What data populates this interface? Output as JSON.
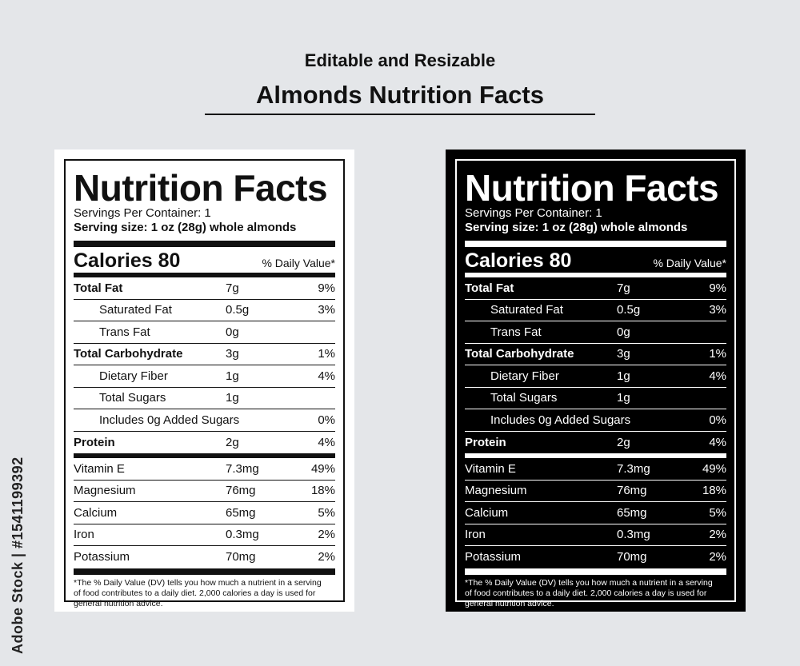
{
  "header": {
    "subtitle": "Editable and Resizable",
    "title": "Almonds Nutrition Facts"
  },
  "side_id": "Adobe Stock | #1541199392",
  "label": {
    "title": "Nutrition Facts",
    "servings_per_container": "Servings Per Container: 1",
    "serving_size": "Serving size: 1 oz (28g) whole almonds",
    "calories": "Calories 80",
    "daily_value_header": "% Daily Value*",
    "rows": [
      {
        "name": "Total Fat",
        "amount": "7g",
        "dv": "9%"
      },
      {
        "name": "Saturated Fat",
        "amount": "0.5g",
        "dv": "3%"
      },
      {
        "name": "Trans Fat",
        "amount": "0g",
        "dv": ""
      },
      {
        "name": "Total Carbohydrate",
        "amount": "3g",
        "dv": "1%"
      },
      {
        "name": "Dietary Fiber",
        "amount": "1g",
        "dv": "4%"
      },
      {
        "name": "Total Sugars",
        "amount": "1g",
        "dv": ""
      },
      {
        "name": "Includes 0g Added Sugars",
        "amount": "",
        "dv": "0%"
      },
      {
        "name": "Protein",
        "amount": "2g",
        "dv": "4%"
      },
      {
        "name": "Vitamin E",
        "amount": "7.3mg",
        "dv": "49%"
      },
      {
        "name": "Magnesium",
        "amount": "76mg",
        "dv": "18%"
      },
      {
        "name": "Calcium",
        "amount": "65mg",
        "dv": "5%"
      },
      {
        "name": "Iron",
        "amount": "0.3mg",
        "dv": "2%"
      },
      {
        "name": "Potassium",
        "amount": "70mg",
        "dv": "2%"
      }
    ],
    "footnote_line1": "*The % Daily Value (DV) tells you how much a nutrient in a serving",
    "footnote_line2": "of food contributes to a daily diet. 2,000 calories a day is used for",
    "footnote_line3": "general nutrition advice."
  },
  "colors": {
    "background": "#e4e6e9",
    "white_label_bg": "#ffffff",
    "black_label_bg": "#000000"
  }
}
